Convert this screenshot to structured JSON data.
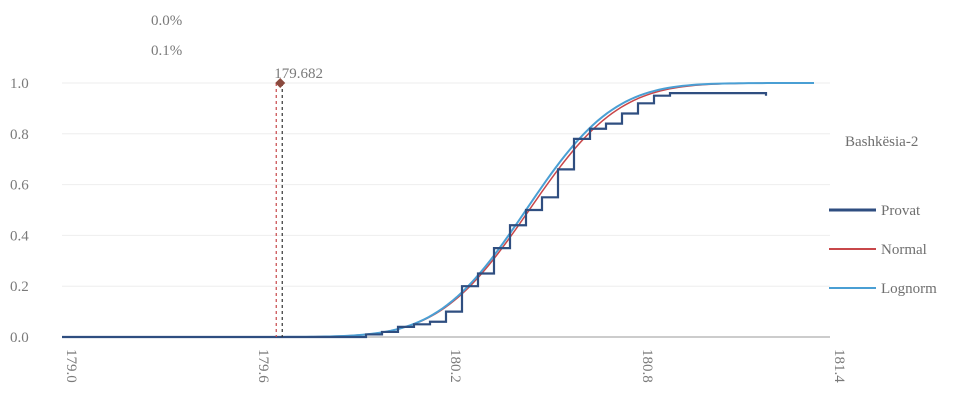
{
  "chart_data": {
    "type": "line",
    "title": "",
    "xlabel": "",
    "ylabel": "",
    "xlim": [
      179.0,
      181.4
    ],
    "ylim": [
      0.0,
      1.0
    ],
    "x_ticks": [
      "179.0",
      "179.6",
      "180.2",
      "180.8",
      "181.4"
    ],
    "y_ticks": [
      "1.0",
      "0.8",
      "0.6",
      "0.4",
      "0.2",
      "0.0"
    ],
    "grid": true,
    "legend": {
      "title": "Bashkësia-2",
      "placement": "right",
      "items": [
        {
          "name": "Provat",
          "color": "#2f4e80"
        },
        {
          "name": "Normal",
          "color": "#c8474a"
        },
        {
          "name": "Lognorm",
          "color": "#4a9fd4"
        }
      ]
    },
    "annotations": {
      "pct_top": "0.0%",
      "pct_bottom": "0.1%",
      "marker_label": "179.682",
      "marker_x": 179.682,
      "marker_y": 1.0
    },
    "series": [
      {
        "name": "Provat",
        "kind": "step",
        "color": "#2f4e80",
        "x": [
          179.0,
          179.95,
          180.0,
          180.05,
          180.1,
          180.15,
          180.2,
          180.25,
          180.3,
          180.35,
          180.4,
          180.45,
          180.5,
          180.55,
          180.6,
          180.65,
          180.7,
          180.75,
          180.8,
          180.85,
          180.9,
          180.95,
          181.0,
          181.1,
          181.2
        ],
        "y": [
          0.0,
          0.01,
          0.02,
          0.04,
          0.05,
          0.06,
          0.1,
          0.2,
          0.25,
          0.35,
          0.44,
          0.5,
          0.55,
          0.66,
          0.78,
          0.82,
          0.84,
          0.88,
          0.92,
          0.95,
          0.96,
          0.96,
          0.96,
          0.96,
          0.95
        ]
      },
      {
        "name": "Normal",
        "kind": "cdf",
        "color": "#c8474a",
        "mean": 180.46,
        "sd": 0.22,
        "x_range": [
          179.0,
          181.2
        ]
      },
      {
        "name": "Lognorm",
        "kind": "cdf",
        "color": "#4a9fd4",
        "mean": 180.45,
        "sd": 0.215,
        "x_range": [
          179.0,
          181.35
        ]
      }
    ]
  }
}
